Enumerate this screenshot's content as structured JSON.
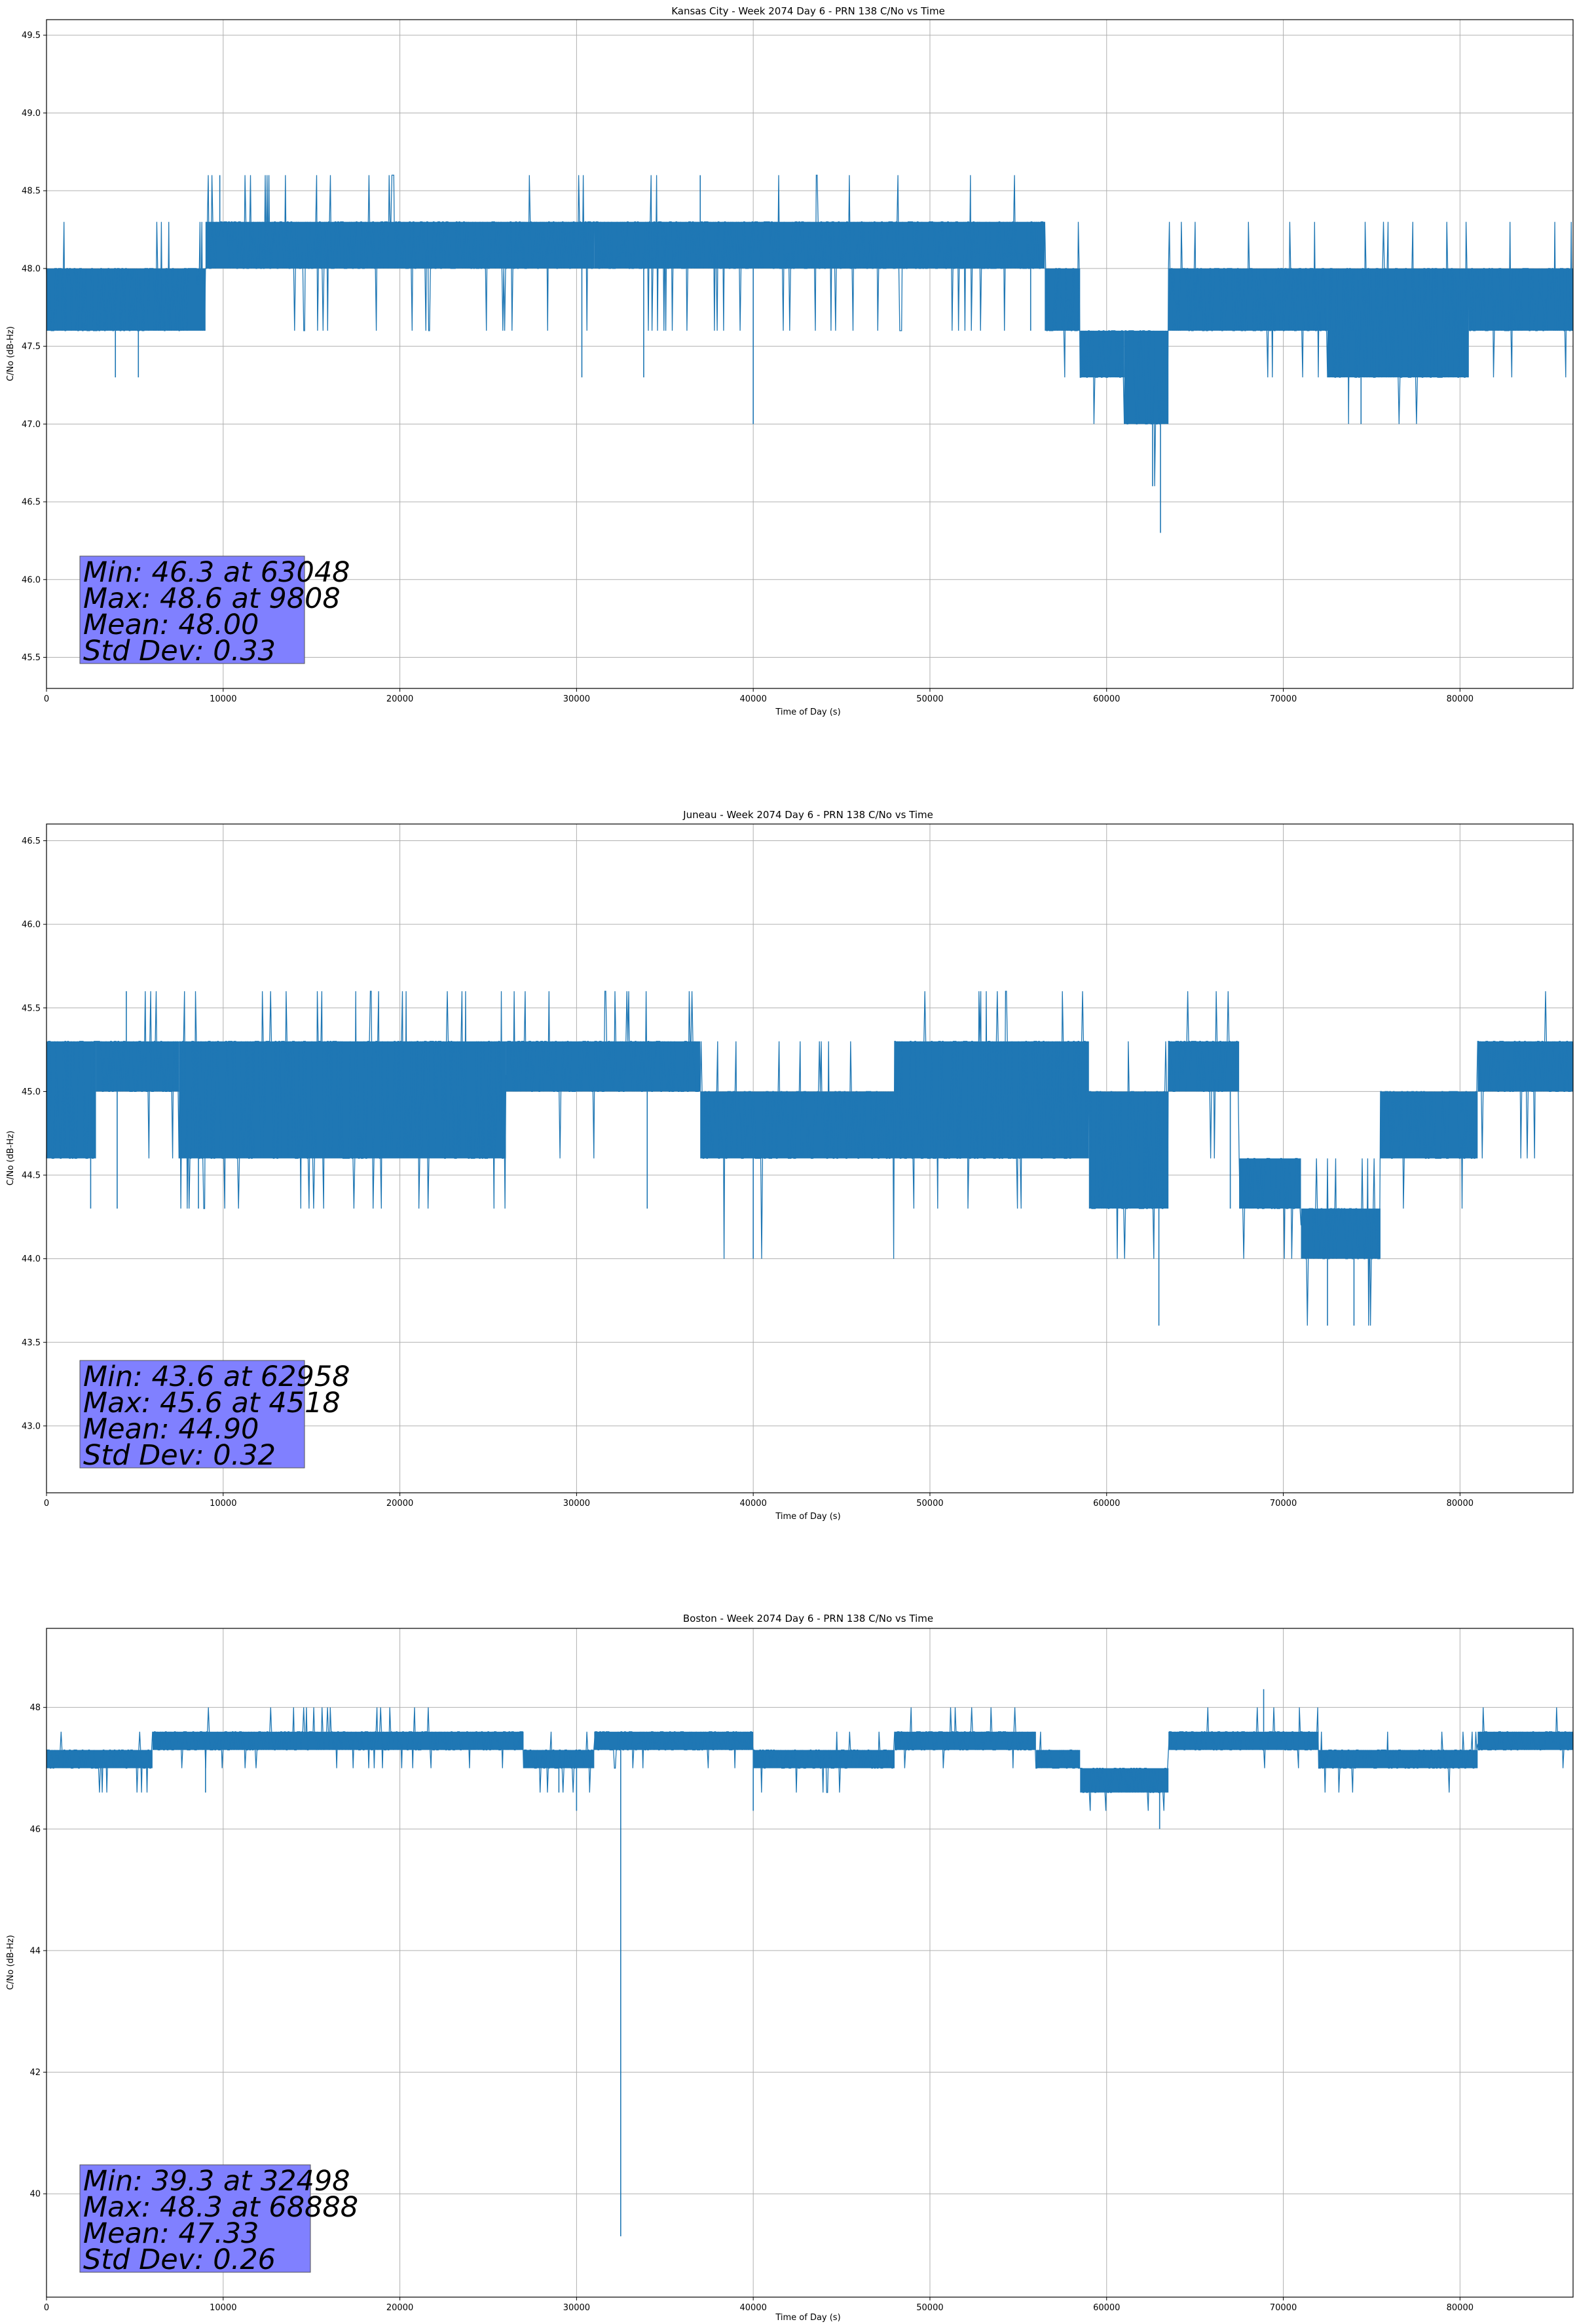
{
  "colors": {
    "series": "#1f77b4",
    "grid": "#b0b0b0",
    "stats_box_fill": "#8080ff",
    "stats_box_edge": "#555555"
  },
  "chart_data": [
    {
      "type": "line",
      "title": "Kansas City - Week 2074 Day 6 - PRN 138 C/No vs Time",
      "xlabel": "Time of Day (s)",
      "ylabel": "C/No (dB-Hz)",
      "xlim": [
        0,
        86400
      ],
      "ylim": [
        45.3,
        49.6
      ],
      "xticks": [
        0,
        10000,
        20000,
        30000,
        40000,
        50000,
        60000,
        70000,
        80000
      ],
      "xtick_labels": [
        "0",
        "10000",
        "20000",
        "30000",
        "40000",
        "50000",
        "60000",
        "70000",
        "80000"
      ],
      "yticks": [
        45.5,
        46.0,
        46.5,
        47.0,
        47.5,
        48.0,
        48.5,
        49.0,
        49.5
      ],
      "ytick_labels": [
        "45.5",
        "46.0",
        "46.5",
        "47.0",
        "47.5",
        "48.0",
        "48.5",
        "49.0",
        "49.5"
      ],
      "grid": true,
      "series_name": "C/No",
      "segments": [
        {
          "x0": 0,
          "x1": 9000,
          "lo": 47.6,
          "hi": 48.0,
          "mid": 47.9,
          "spike_lo": 47.6,
          "spike_hi": 48.3
        },
        {
          "x0": 9000,
          "x1": 23500,
          "lo": 48.0,
          "hi": 48.3,
          "mid": 48.2,
          "spike_lo": 47.6,
          "spike_hi": 48.6
        },
        {
          "x0": 23500,
          "x1": 31000,
          "lo": 48.0,
          "hi": 48.3,
          "mid": 48.1,
          "spike_lo": 47.6,
          "spike_hi": 48.6
        },
        {
          "x0": 31000,
          "x1": 56500,
          "lo": 48.0,
          "hi": 48.3,
          "mid": 48.1,
          "spike_lo": 47.6,
          "spike_hi": 48.6
        },
        {
          "x0": 56500,
          "x1": 58500,
          "lo": 47.6,
          "hi": 48.0,
          "mid": 47.8,
          "spike_lo": 47.3,
          "spike_hi": 48.3
        },
        {
          "x0": 58500,
          "x1": 61000,
          "lo": 47.3,
          "hi": 47.6,
          "mid": 47.4,
          "spike_lo": 47.0,
          "spike_hi": 48.0
        },
        {
          "x0": 61000,
          "x1": 63500,
          "lo": 47.0,
          "hi": 47.6,
          "mid": 47.3,
          "spike_lo": 46.6,
          "spike_hi": 48.0
        },
        {
          "x0": 63500,
          "x1": 72500,
          "lo": 47.6,
          "hi": 48.0,
          "mid": 47.8,
          "spike_lo": 47.3,
          "spike_hi": 48.3
        },
        {
          "x0": 72500,
          "x1": 80500,
          "lo": 47.3,
          "hi": 48.0,
          "mid": 47.6,
          "spike_lo": 47.0,
          "spike_hi": 48.3
        },
        {
          "x0": 80500,
          "x1": 86400,
          "lo": 47.6,
          "hi": 48.0,
          "mid": 47.8,
          "spike_lo": 47.3,
          "spike_hi": 48.3
        }
      ],
      "outliers": [
        {
          "x": 3900,
          "y": 47.3
        },
        {
          "x": 5200,
          "y": 47.3
        },
        {
          "x": 30300,
          "y": 47.3
        },
        {
          "x": 33800,
          "y": 47.3
        },
        {
          "x": 40000,
          "y": 47.0
        },
        {
          "x": 55700,
          "y": 47.6
        },
        {
          "x": 62600,
          "y": 46.6
        },
        {
          "x": 63048,
          "y": 46.3
        },
        {
          "x": 9808,
          "y": 48.6
        },
        {
          "x": 37000,
          "y": 48.6
        },
        {
          "x": 74400,
          "y": 47.0
        }
      ],
      "stats": {
        "min": "Min: 46.3 at 63048",
        "max": "Max: 48.6 at 9808",
        "mean": "Mean: 48.00",
        "std": "Std Dev: 0.33"
      }
    },
    {
      "type": "line",
      "title": "Juneau - Week 2074 Day 6 - PRN 138 C/No vs Time",
      "xlabel": "Time of Day (s)",
      "ylabel": "C/No (dB-Hz)",
      "xlim": [
        0,
        86400
      ],
      "ylim": [
        42.6,
        46.6
      ],
      "xticks": [
        0,
        10000,
        20000,
        30000,
        40000,
        50000,
        60000,
        70000,
        80000
      ],
      "xtick_labels": [
        "0",
        "10000",
        "20000",
        "30000",
        "40000",
        "50000",
        "60000",
        "70000",
        "80000"
      ],
      "yticks": [
        43.0,
        43.5,
        44.0,
        44.5,
        45.0,
        45.5,
        46.0,
        46.5
      ],
      "ytick_labels": [
        "43.0",
        "43.5",
        "44.0",
        "44.5",
        "45.0",
        "45.5",
        "46.0",
        "46.5"
      ],
      "grid": true,
      "series_name": "C/No",
      "segments": [
        {
          "x0": 0,
          "x1": 2800,
          "lo": 44.6,
          "hi": 45.3,
          "mid": 45.0,
          "spike_lo": 44.6,
          "spike_hi": 45.3
        },
        {
          "x0": 2800,
          "x1": 7500,
          "lo": 45.0,
          "hi": 45.3,
          "mid": 45.2,
          "spike_lo": 44.6,
          "spike_hi": 45.6
        },
        {
          "x0": 7500,
          "x1": 26000,
          "lo": 44.6,
          "hi": 45.3,
          "mid": 44.9,
          "spike_lo": 44.3,
          "spike_hi": 45.6
        },
        {
          "x0": 26000,
          "x1": 37000,
          "lo": 45.0,
          "hi": 45.3,
          "mid": 45.1,
          "spike_lo": 44.6,
          "spike_hi": 45.6
        },
        {
          "x0": 37000,
          "x1": 48000,
          "lo": 44.6,
          "hi": 45.0,
          "mid": 44.8,
          "spike_lo": 44.0,
          "spike_hi": 45.3
        },
        {
          "x0": 48000,
          "x1": 59000,
          "lo": 44.6,
          "hi": 45.3,
          "mid": 44.9,
          "spike_lo": 44.3,
          "spike_hi": 45.6
        },
        {
          "x0": 59000,
          "x1": 63500,
          "lo": 44.3,
          "hi": 45.0,
          "mid": 44.6,
          "spike_lo": 44.0,
          "spike_hi": 45.3
        },
        {
          "x0": 63500,
          "x1": 67500,
          "lo": 45.0,
          "hi": 45.3,
          "mid": 45.1,
          "spike_lo": 44.6,
          "spike_hi": 45.6
        },
        {
          "x0": 67500,
          "x1": 71000,
          "lo": 44.3,
          "hi": 44.6,
          "mid": 44.5,
          "spike_lo": 44.0,
          "spike_hi": 45.0
        },
        {
          "x0": 71000,
          "x1": 75500,
          "lo": 44.0,
          "hi": 44.3,
          "mid": 44.2,
          "spike_lo": 43.6,
          "spike_hi": 44.6
        },
        {
          "x0": 75500,
          "x1": 81000,
          "lo": 44.6,
          "hi": 45.0,
          "mid": 44.7,
          "spike_lo": 44.3,
          "spike_hi": 45.0
        },
        {
          "x0": 81000,
          "x1": 86400,
          "lo": 45.0,
          "hi": 45.3,
          "mid": 45.1,
          "spike_lo": 44.6,
          "spike_hi": 45.6
        }
      ],
      "outliers": [
        {
          "x": 2500,
          "y": 44.3
        },
        {
          "x": 4000,
          "y": 44.3
        },
        {
          "x": 8600,
          "y": 44.3
        },
        {
          "x": 34000,
          "y": 44.3
        },
        {
          "x": 40000,
          "y": 44.0
        },
        {
          "x": 62958,
          "y": 43.6
        },
        {
          "x": 4518,
          "y": 45.6
        },
        {
          "x": 72500,
          "y": 43.6
        },
        {
          "x": 74000,
          "y": 43.6
        },
        {
          "x": 67000,
          "y": 44.3
        }
      ],
      "stats": {
        "min": "Min: 43.6 at 62958",
        "max": "Max: 45.6 at 4518",
        "mean": "Mean: 44.90",
        "std": "Std Dev: 0.32"
      }
    },
    {
      "type": "line",
      "title": "Boston - Week 2074 Day 6 - PRN 138 C/No vs Time",
      "xlabel": "Time of Day (s)",
      "ylabel": "C/No (dB-Hz)",
      "xlim": [
        0,
        86400
      ],
      "ylim": [
        38.3,
        49.3
      ],
      "xticks": [
        0,
        10000,
        20000,
        30000,
        40000,
        50000,
        60000,
        70000,
        80000
      ],
      "xtick_labels": [
        "0",
        "10000",
        "20000",
        "30000",
        "40000",
        "50000",
        "60000",
        "70000",
        "80000"
      ],
      "yticks": [
        40,
        42,
        44,
        46,
        48
      ],
      "ytick_labels": [
        "40",
        "42",
        "44",
        "46",
        "48"
      ],
      "grid": true,
      "series_name": "C/No",
      "segments": [
        {
          "x0": 0,
          "x1": 6000,
          "lo": 47.0,
          "hi": 47.3,
          "mid": 47.2,
          "spike_lo": 46.6,
          "spike_hi": 47.6
        },
        {
          "x0": 6000,
          "x1": 27000,
          "lo": 47.3,
          "hi": 47.6,
          "mid": 47.5,
          "spike_lo": 47.0,
          "spike_hi": 48.0
        },
        {
          "x0": 27000,
          "x1": 31000,
          "lo": 47.0,
          "hi": 47.3,
          "mid": 47.2,
          "spike_lo": 46.6,
          "spike_hi": 47.6
        },
        {
          "x0": 31000,
          "x1": 40000,
          "lo": 47.3,
          "hi": 47.6,
          "mid": 47.4,
          "spike_lo": 47.0,
          "spike_hi": 47.6
        },
        {
          "x0": 40000,
          "x1": 48000,
          "lo": 47.0,
          "hi": 47.3,
          "mid": 47.2,
          "spike_lo": 46.6,
          "spike_hi": 47.6
        },
        {
          "x0": 48000,
          "x1": 56000,
          "lo": 47.3,
          "hi": 47.6,
          "mid": 47.4,
          "spike_lo": 47.0,
          "spike_hi": 48.0
        },
        {
          "x0": 56000,
          "x1": 58500,
          "lo": 47.0,
          "hi": 47.3,
          "mid": 47.1,
          "spike_lo": 47.0,
          "spike_hi": 47.6
        },
        {
          "x0": 58500,
          "x1": 63500,
          "lo": 46.6,
          "hi": 47.0,
          "mid": 46.8,
          "spike_lo": 46.3,
          "spike_hi": 47.3
        },
        {
          "x0": 63500,
          "x1": 72000,
          "lo": 47.3,
          "hi": 47.6,
          "mid": 47.5,
          "spike_lo": 47.0,
          "spike_hi": 48.0
        },
        {
          "x0": 72000,
          "x1": 81000,
          "lo": 47.0,
          "hi": 47.3,
          "mid": 47.2,
          "spike_lo": 46.6,
          "spike_hi": 47.6
        },
        {
          "x0": 81000,
          "x1": 86400,
          "lo": 47.3,
          "hi": 47.6,
          "mid": 47.4,
          "spike_lo": 47.0,
          "spike_hi": 48.0
        }
      ],
      "outliers": [
        {
          "x": 29000,
          "y": 46.6
        },
        {
          "x": 30000,
          "y": 46.3
        },
        {
          "x": 32498,
          "y": 39.3
        },
        {
          "x": 40000,
          "y": 46.3
        },
        {
          "x": 63000,
          "y": 46.0
        },
        {
          "x": 68888,
          "y": 48.3
        },
        {
          "x": 9000,
          "y": 46.6
        }
      ],
      "stats": {
        "min": "Min: 39.3 at 32498",
        "max": "Max: 48.3 at 68888",
        "mean": "Mean: 47.33",
        "std": "Std Dev: 0.26"
      }
    }
  ]
}
